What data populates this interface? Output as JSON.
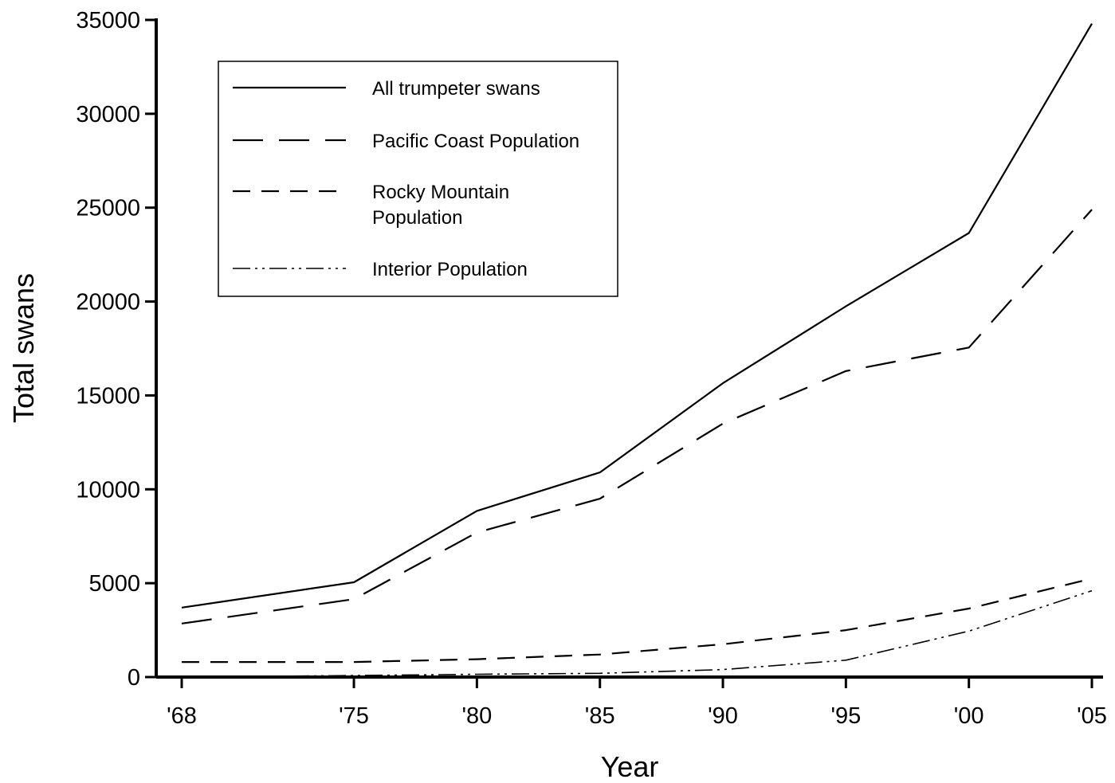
{
  "chart_data": {
    "type": "line",
    "title": "",
    "xlabel": "Year",
    "ylabel": "Total swans",
    "categories": [
      "'68",
      "'75",
      "'80",
      "'85",
      "'90",
      "'95",
      "'00",
      "'05"
    ],
    "x": [
      1968,
      1975,
      1980,
      1985,
      1990,
      1995,
      2000,
      2005
    ],
    "ylim": [
      0,
      35000
    ],
    "yticks": [
      0,
      5000,
      10000,
      15000,
      20000,
      25000,
      30000,
      35000
    ],
    "grid": false,
    "legend_position": "top-left",
    "series": [
      {
        "name": "All trumpeter swans",
        "dash": "solid",
        "values": [
          3700,
          5050,
          8850,
          10900,
          15650,
          19750,
          23650,
          34800
        ]
      },
      {
        "name": "Pacific Coast Population",
        "dash": "long-dash",
        "values": [
          2850,
          4150,
          7700,
          9500,
          13500,
          16300,
          17550,
          24900
        ]
      },
      {
        "name": "Rocky Mountain Population",
        "dash": "dash",
        "values": [
          800,
          800,
          950,
          1200,
          1750,
          2500,
          3650,
          5250
        ]
      },
      {
        "name": "Interior Population",
        "dash": "dash-dot-dot",
        "values": [
          0,
          80,
          150,
          200,
          400,
          900,
          2450,
          4600
        ]
      }
    ]
  }
}
